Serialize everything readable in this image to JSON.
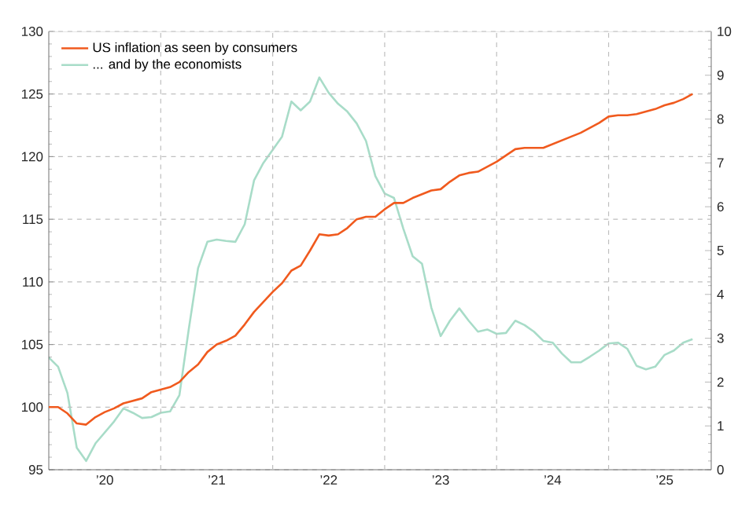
{
  "chart_data": {
    "type": "line",
    "x": [
      "2020-01",
      "2020-02",
      "2020-03",
      "2020-04",
      "2020-05",
      "2020-06",
      "2020-07",
      "2020-08",
      "2020-09",
      "2020-10",
      "2020-11",
      "2020-12",
      "2021-01",
      "2021-02",
      "2021-03",
      "2021-04",
      "2021-05",
      "2021-06",
      "2021-07",
      "2021-08",
      "2021-09",
      "2021-10",
      "2021-11",
      "2021-12",
      "2022-01",
      "2022-02",
      "2022-03",
      "2022-04",
      "2022-05",
      "2022-06",
      "2022-07",
      "2022-08",
      "2022-09",
      "2022-10",
      "2022-11",
      "2022-12",
      "2023-01",
      "2023-02",
      "2023-03",
      "2023-04",
      "2023-05",
      "2023-06",
      "2023-07",
      "2023-08",
      "2023-09",
      "2023-10",
      "2023-11",
      "2023-12",
      "2024-01",
      "2024-02",
      "2024-03",
      "2024-04",
      "2024-05",
      "2024-06",
      "2024-07",
      "2024-08",
      "2024-09",
      "2024-10",
      "2024-11",
      "2024-12",
      "2025-01",
      "2025-02",
      "2025-03",
      "2025-04",
      "2025-05",
      "2025-06",
      "2025-07",
      "2025-08",
      "2025-09",
      "2025-10"
    ],
    "series": [
      {
        "name": "US inflation as seen by consumers",
        "color": "#f05a1e",
        "values": [
          100.0,
          100.0,
          99.5,
          98.7,
          98.6,
          99.2,
          99.6,
          99.9,
          100.3,
          100.5,
          100.7,
          101.2,
          101.4,
          101.6,
          102.0,
          102.8,
          103.4,
          104.4,
          105.0,
          105.3,
          105.7,
          106.6,
          107.6,
          108.4,
          109.2,
          109.9,
          110.9,
          111.3,
          112.5,
          113.8,
          113.7,
          113.8,
          114.3,
          115.0,
          115.2,
          115.2,
          115.8,
          116.3,
          116.3,
          116.7,
          117.0,
          117.3,
          117.4,
          118.0,
          118.5,
          118.7,
          118.8,
          119.2,
          119.6,
          120.1,
          120.6,
          120.7,
          120.7,
          120.7,
          121.0,
          121.3,
          121.6,
          121.9,
          122.3,
          122.7,
          123.2,
          123.3,
          123.3,
          123.4,
          123.6,
          123.8,
          124.1,
          124.3,
          124.6,
          125.0
        ]
      },
      {
        "name": "... and by the economists",
        "color": "#a8dcc8",
        "axis": "y2",
        "values": [
          2.56,
          2.35,
          1.75,
          0.5,
          0.2,
          0.6,
          0.85,
          1.1,
          1.4,
          1.3,
          1.18,
          1.2,
          1.3,
          1.33,
          1.7,
          3.2,
          4.6,
          5.2,
          5.25,
          5.22,
          5.2,
          5.6,
          6.6,
          7.0,
          7.3,
          7.6,
          8.4,
          8.2,
          8.4,
          8.95,
          8.6,
          8.35,
          8.17,
          7.9,
          7.5,
          6.7,
          6.3,
          6.2,
          5.5,
          4.87,
          4.7,
          3.7,
          3.05,
          3.4,
          3.68,
          3.4,
          3.15,
          3.2,
          3.1,
          3.12,
          3.4,
          3.3,
          3.15,
          2.94,
          2.9,
          2.65,
          2.45,
          2.45,
          2.58,
          2.72,
          2.88,
          2.9,
          2.76,
          2.37,
          2.29,
          2.35,
          2.62,
          2.72,
          2.9,
          2.98
        ]
      }
    ],
    "xlim": [
      "2020-01",
      "2025-12"
    ],
    "xticks": [
      {
        "value": "2020-07",
        "label": "’20"
      },
      {
        "value": "2021-07",
        "label": "’21"
      },
      {
        "value": "2022-07",
        "label": "’22"
      },
      {
        "value": "2023-07",
        "label": "’23"
      },
      {
        "value": "2024-07",
        "label": "’24"
      },
      {
        "value": "2025-07",
        "label": "’25"
      },
      {
        "value": "2021-01",
        "label": null
      },
      {
        "value": "2022-01",
        "label": null
      },
      {
        "value": "2023-01",
        "label": null
      },
      {
        "value": "2024-01",
        "label": null
      },
      {
        "value": "2025-01",
        "label": null
      }
    ],
    "ylim": [
      95,
      130
    ],
    "yticks": [
      95,
      100,
      105,
      110,
      115,
      120,
      125,
      130
    ],
    "y2lim": [
      0,
      10
    ],
    "y2ticks": [
      0,
      1,
      2,
      3,
      4,
      5,
      6,
      7,
      8,
      9,
      10
    ],
    "grid": true,
    "legend": "top left",
    "line_style": "solid",
    "marker": "none"
  }
}
